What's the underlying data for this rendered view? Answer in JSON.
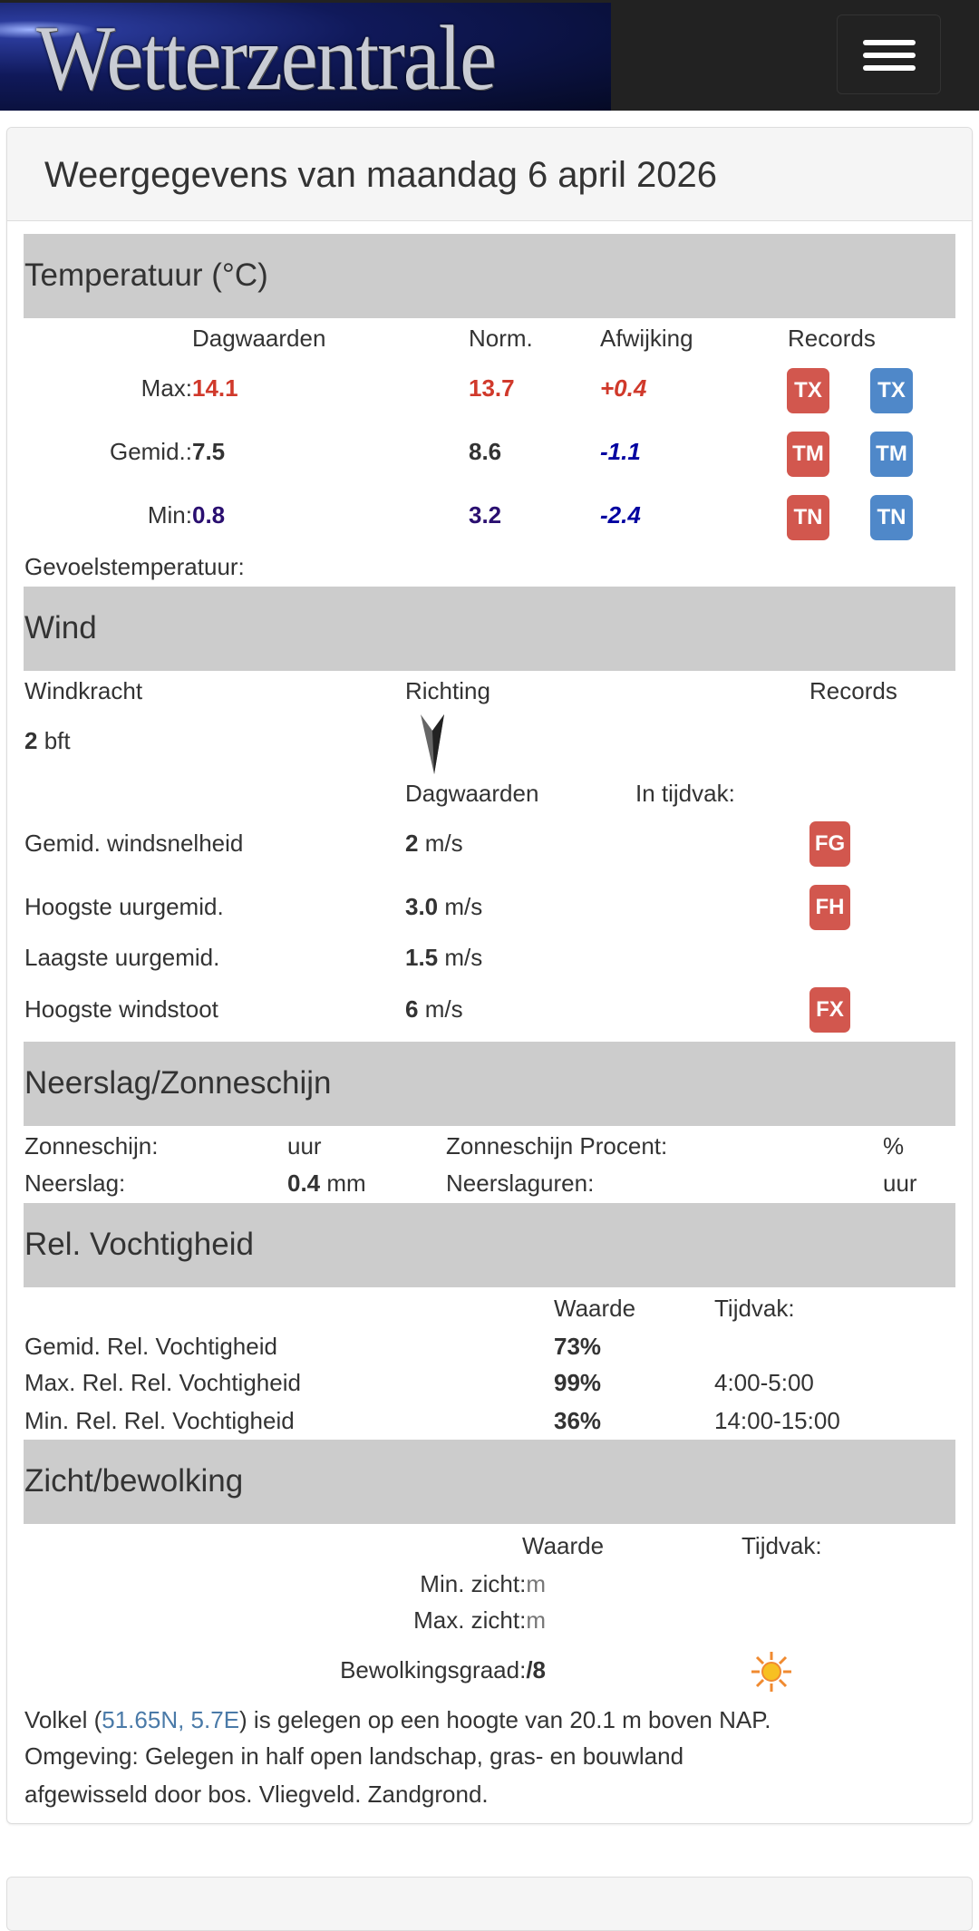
{
  "header": {
    "logo_text": "Wetterzentrale",
    "menu_icon": "hamburger-icon"
  },
  "title": "Weergegevens van maandag 6 april 2026",
  "temperature": {
    "heading": "Temperatuur (°C)",
    "columns": [
      "Dagwaarden",
      "Norm.",
      "Afwijking",
      "Records"
    ],
    "rows": [
      {
        "label": "Max:",
        "value": "14.1",
        "norm": "13.7",
        "dev": "+0.4",
        "rec": "TX",
        "color": "#d0392b",
        "devcolor": "#d0392b"
      },
      {
        "label": "Gemid.:",
        "value": "7.5",
        "norm": "8.6",
        "dev": "-1.1",
        "rec": "TM",
        "color": "#333333",
        "devcolor": "#0000a0"
      },
      {
        "label": "Min:",
        "value": "0.8",
        "norm": "3.2",
        "dev": "-2.4",
        "rec": "TN",
        "color": "#2a0f70",
        "devcolor": "#0000a0"
      }
    ],
    "feels_like": "Gevoelstemperatuur:"
  },
  "wind": {
    "heading": "Wind",
    "col_windkracht": "Windkracht",
    "col_richting": "Richting",
    "col_records": "Records",
    "bft_value": "2",
    "bft_unit": "bft",
    "col_dag": "Dagwaarden",
    "col_tijdvak": "In tijdvak:",
    "rows": [
      {
        "label": "Gemid. windsnelheid",
        "value": "2",
        "unit": "m/s",
        "rec": "FG"
      },
      {
        "label": "Hoogste uurgemid.",
        "value": "3.0",
        "unit": "m/s",
        "rec": "FH"
      },
      {
        "label": "Laagste uurgemid.",
        "value": "1.5",
        "unit": "m/s",
        "rec": ""
      },
      {
        "label": "Hoogste windstoot",
        "value": "6",
        "unit": "m/s",
        "rec": "FX"
      }
    ]
  },
  "precip": {
    "heading": "Neerslag/Zonneschijn",
    "sun_label": "Zonneschijn:",
    "sun_unit": "uur",
    "sun_pct_label": "Zonneschijn Procent:",
    "sun_pct_unit": "%",
    "rain_label": "Neerslag:",
    "rain_value": "0.4",
    "rain_unit": "mm",
    "rain_hours_label": "Neerslaguren:",
    "rain_hours_unit": "uur"
  },
  "humidity": {
    "heading": "Rel. Vochtigheid",
    "col_value": "Waarde",
    "col_period": "Tijdvak:",
    "rows": [
      {
        "label": "Gemid. Rel. Vochtigheid",
        "value": "73%",
        "period": ""
      },
      {
        "label": "Max. Rel. Rel. Vochtigheid",
        "value": "99%",
        "period": "4:00-5:00"
      },
      {
        "label": "Min. Rel. Rel. Vochtigheid",
        "value": "36%",
        "period": "14:00-15:00"
      }
    ]
  },
  "visibility": {
    "heading": "Zicht/bewolking",
    "col_value": "Waarde",
    "col_period": "Tijdvak:",
    "min_label": "Min. zicht:",
    "min_unit": "m",
    "max_label": "Max. zicht:",
    "max_unit": "m",
    "cloud_label": "Bewolkingsgraad:",
    "cloud_value": "/8",
    "cloud_icon": "sun-icon"
  },
  "station": {
    "name": "Volkel (",
    "coords": "51.65N, 5.7E",
    "rest": ") is gelegen op een hoogte van 20.1 m boven NAP.",
    "env_line1": "Omgeving: Gelegen in half open landschap, gras- en bouwland",
    "env_line2": "afgewisseld door bos. Vliegveld. Zandgrond."
  },
  "colors": {
    "record_red": "#d2574e",
    "record_blue": "#4f88c9",
    "link": "#4a7aa8",
    "band": "#cccccc"
  }
}
